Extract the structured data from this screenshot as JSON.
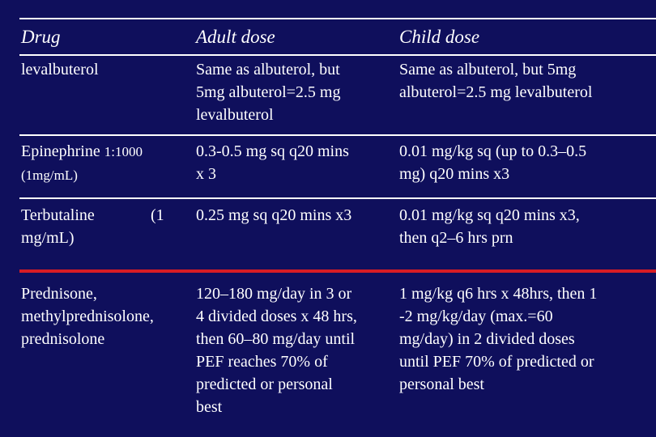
{
  "table": {
    "headers": [
      "Drug",
      "Adult dose",
      "Child dose"
    ],
    "rows": [
      {
        "drug": "levalbuterol",
        "adult": "Same as albuterol, but\n5mg albuterol=2.5 mg\nlevalbuterol",
        "child": "Same as albuterol, but 5mg\nalbuterol=2.5 mg levalbuterol"
      },
      {
        "drug_name": "Epinephrine",
        "drug_ratio": "1:1000",
        "drug_conc": "(1mg/mL)",
        "adult": "0.3-0.5 mg sq q20 mins\nx 3",
        "child": "0.01 mg/kg sq (up to 0.3–0.5\nmg) q20 mins x3"
      },
      {
        "drug_name": "Terbutaline",
        "drug_conc_open": "(1",
        "drug_conc_unit": "mg/mL)",
        "adult": "0.25 mg sq q20 mins x3",
        "child": "0.01 mg/kg sq q20 mins x3,\nthen q2–6 hrs prn"
      },
      {
        "drug": "Prednisone,\nmethylprednisolone,\nprednisolone",
        "adult": "120–180 mg/day in 3 or\n4 divided doses x 48 hrs,\nthen 60–80 mg/day until\nPEF reaches 70% of\npredicted or personal\nbest",
        "child": "1 mg/kg q6 hrs x 48hrs, then 1\n-2 mg/kg/day (max.=60\nmg/day) in 2 divided doses\nuntil PEF 70% of predicted or\npersonal best"
      }
    ]
  },
  "colors": {
    "background": "#0f0f5c",
    "text": "#ffffff",
    "accent_rule": "#d81c24"
  }
}
